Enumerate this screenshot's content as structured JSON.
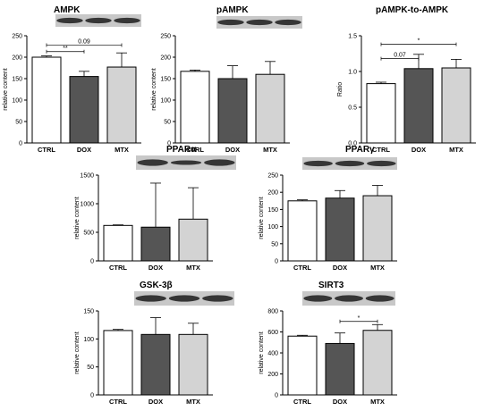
{
  "colors": {
    "CTRL": "#ffffff",
    "DOX": "#555555",
    "MTX": "#d3d3d3"
  },
  "chart_data": [
    {
      "type": "bar",
      "title": "AMPK",
      "ylabel": "relative content",
      "categories": [
        "CTRL",
        "DOX",
        "MTX"
      ],
      "values": [
        200,
        155,
        177
      ],
      "errors": [
        3,
        12,
        33
      ],
      "ylim": [
        0,
        250
      ],
      "yticks": [
        0,
        50,
        100,
        150,
        200,
        250
      ],
      "blot": true,
      "annotations": [
        {
          "from": 0,
          "to": 1,
          "y": 213,
          "label": "**"
        },
        {
          "from": 0,
          "to": 2,
          "y": 228,
          "label": "0.09"
        }
      ]
    },
    {
      "type": "bar",
      "title": "pAMPK",
      "ylabel": "relative content",
      "categories": [
        "CTRL",
        "DOX",
        "MTX"
      ],
      "values": [
        167,
        150,
        160
      ],
      "errors": [
        3,
        30,
        30
      ],
      "ylim": [
        0,
        250
      ],
      "yticks": [
        0,
        50,
        100,
        150,
        200,
        250
      ],
      "blot": true,
      "annotations": []
    },
    {
      "type": "bar",
      "title": "pAMPK-to-AMPK",
      "ylabel": "Ratio",
      "categories": [
        "CTRL",
        "DOX",
        "MTX"
      ],
      "values": [
        0.83,
        1.04,
        1.05
      ],
      "errors": [
        0.02,
        0.2,
        0.12
      ],
      "ylim": [
        0,
        1.5
      ],
      "yticks": [
        "0.0",
        "0.5",
        "1.0",
        "1.5"
      ],
      "blot": false,
      "annotations": [
        {
          "from": 0,
          "to": 1,
          "y": 1.18,
          "label": "0.07"
        },
        {
          "from": 0,
          "to": 2,
          "y": 1.38,
          "label": "*"
        }
      ]
    },
    {
      "type": "bar",
      "title": "PPARα",
      "ylabel": "relative content",
      "categories": [
        "CTRL",
        "DOX",
        "MTX"
      ],
      "values": [
        620,
        590,
        730
      ],
      "errors": [
        10,
        770,
        550
      ],
      "ylim": [
        0,
        1500
      ],
      "yticks": [
        0,
        500,
        1000,
        1500
      ],
      "blot": true,
      "annotations": []
    },
    {
      "type": "bar",
      "title": "PPARγ",
      "ylabel": "relative content",
      "categories": [
        "CTRL",
        "DOX",
        "MTX"
      ],
      "values": [
        175,
        183,
        190
      ],
      "errors": [
        3,
        22,
        30
      ],
      "ylim": [
        0,
        250
      ],
      "yticks": [
        0,
        50,
        100,
        150,
        200,
        250
      ],
      "blot": true,
      "annotations": []
    },
    {
      "type": "bar",
      "title": "GSK-3β",
      "ylabel": "relative content",
      "categories": [
        "CTRL",
        "DOX",
        "MTX"
      ],
      "values": [
        115,
        108,
        108
      ],
      "errors": [
        2,
        30,
        20
      ],
      "ylim": [
        0,
        150
      ],
      "yticks": [
        0,
        50,
        100,
        150
      ],
      "blot": true,
      "annotations": []
    },
    {
      "type": "bar",
      "title": "SIRT3",
      "ylabel": "relative content",
      "categories": [
        "CTRL",
        "DOX",
        "MTX"
      ],
      "values": [
        560,
        490,
        615
      ],
      "errors": [
        8,
        100,
        55
      ],
      "ylim": [
        0,
        800
      ],
      "yticks": [
        0,
        200,
        400,
        600,
        800
      ],
      "blot": true,
      "annotations": [
        {
          "from": 1,
          "to": 2,
          "y": 700,
          "label": "*"
        }
      ]
    }
  ]
}
